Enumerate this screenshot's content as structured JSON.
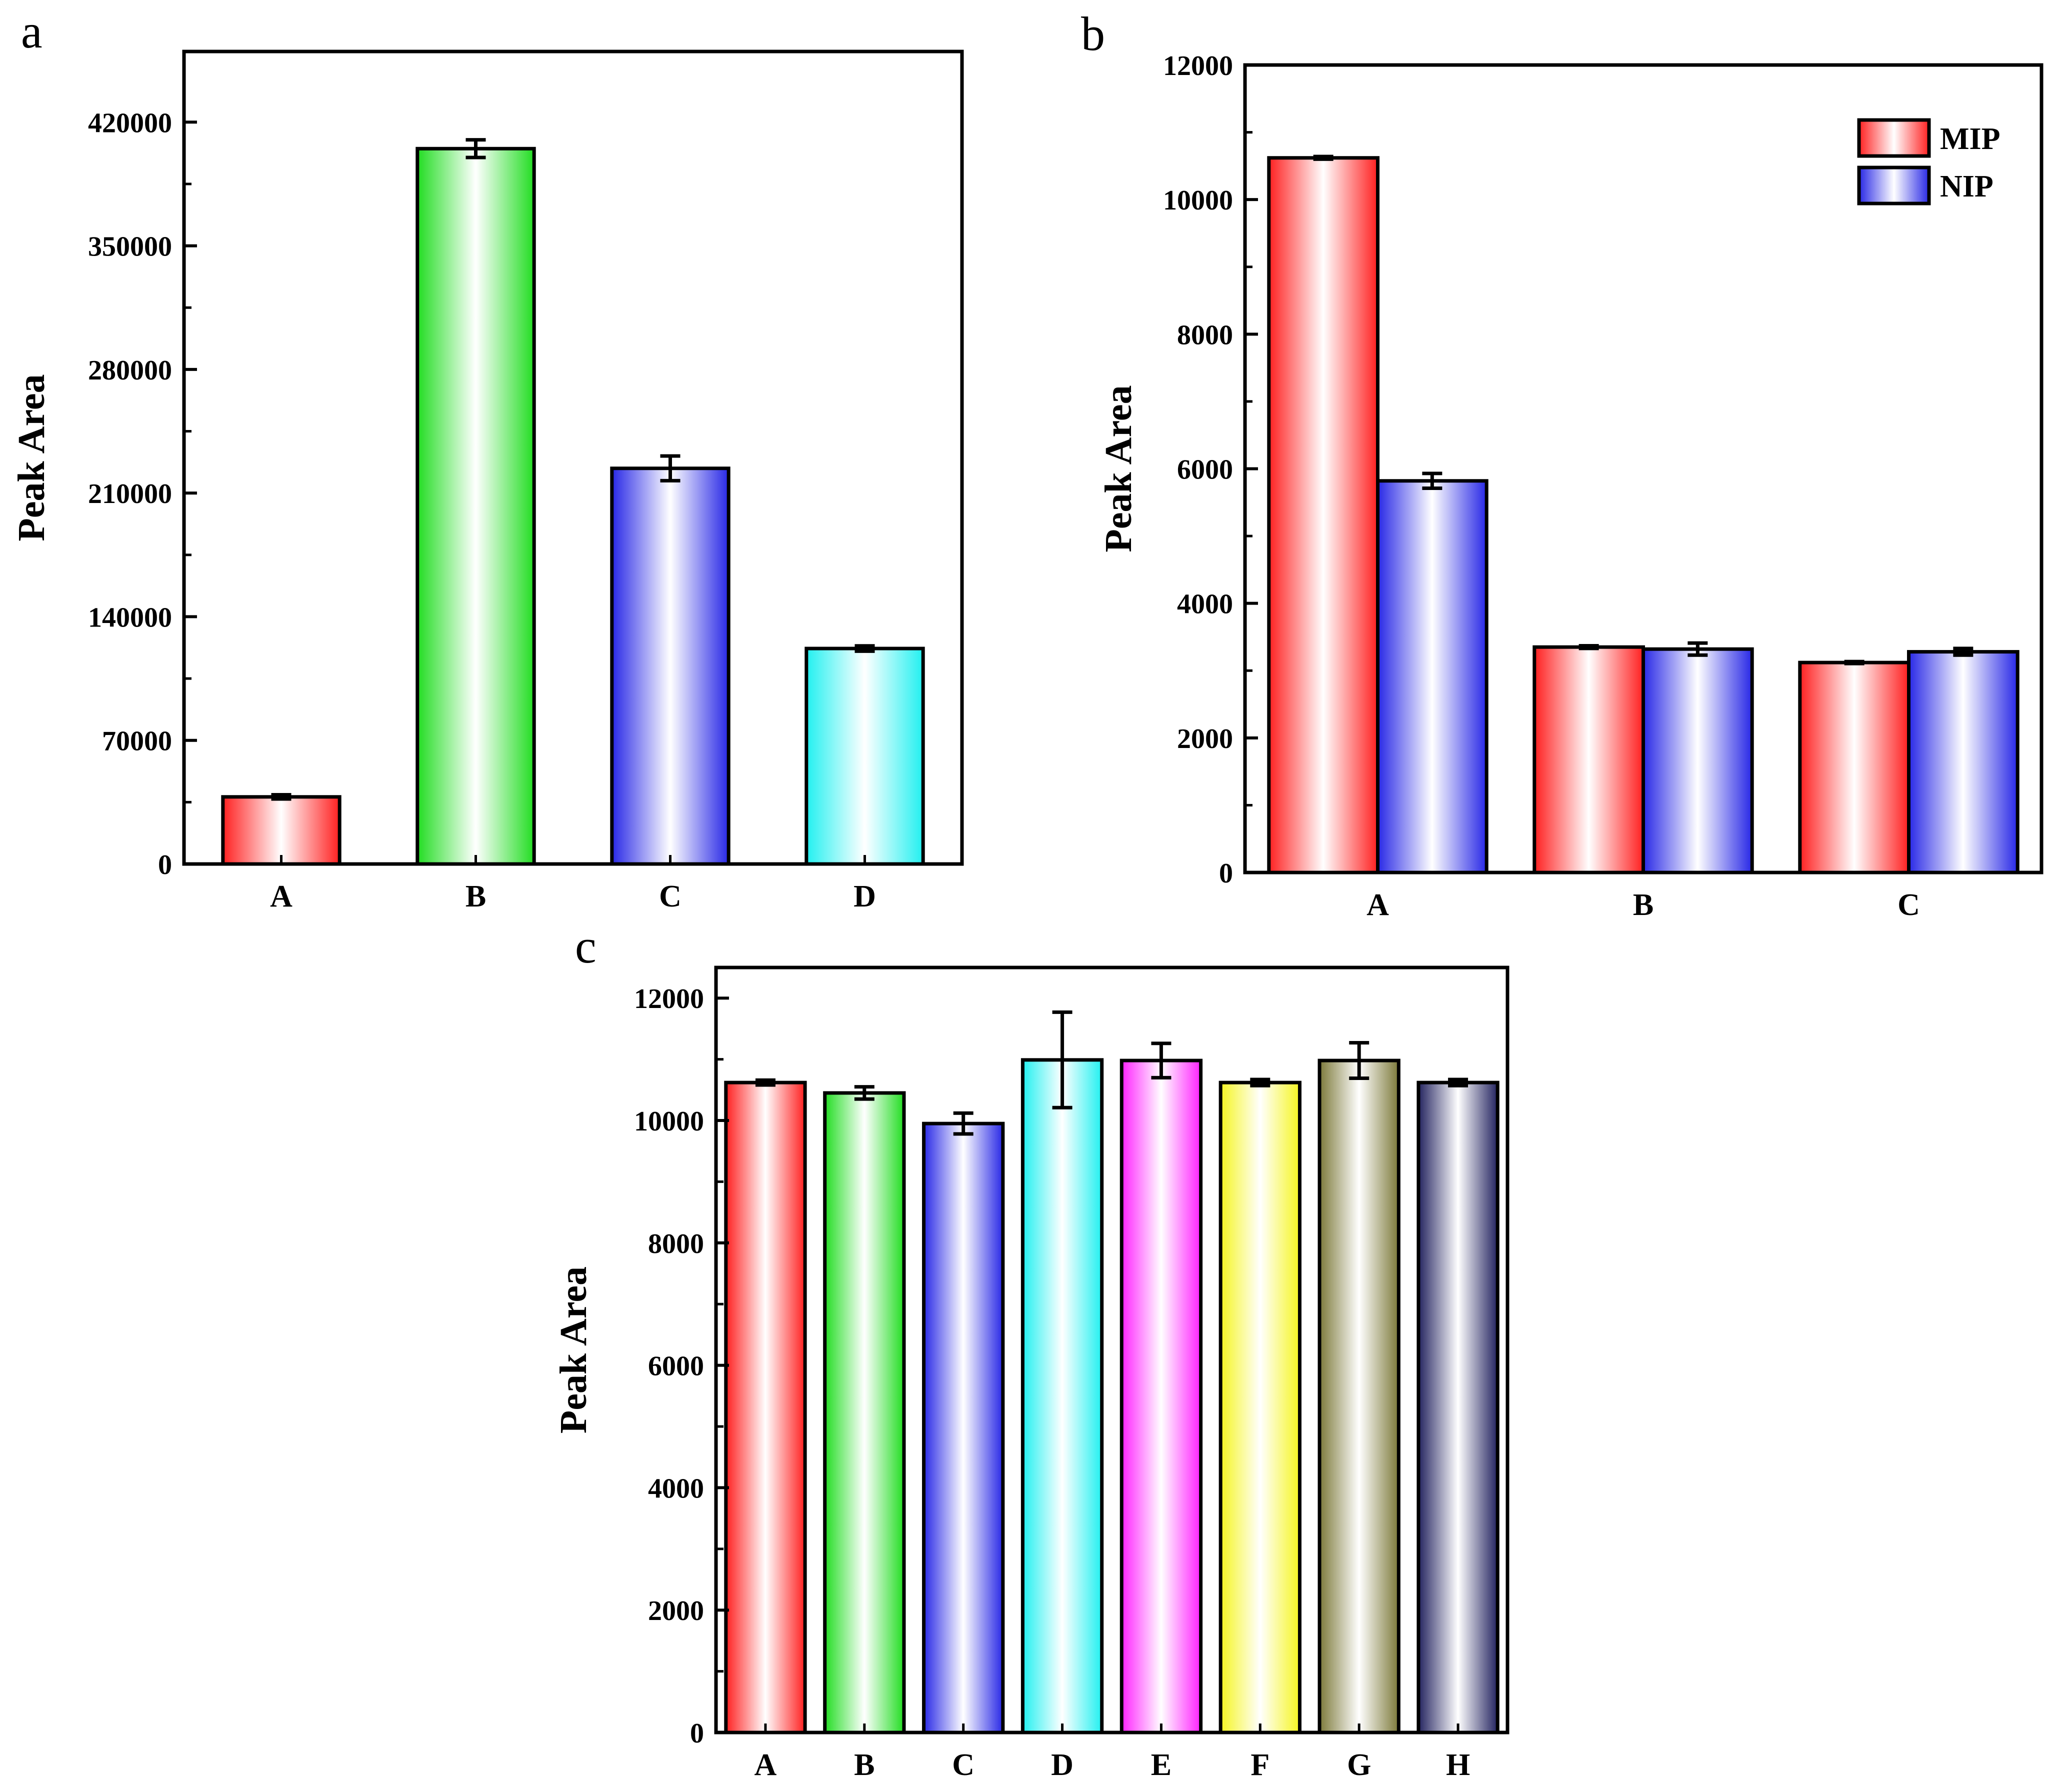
{
  "chart_data": [
    {
      "panel": "a",
      "type": "bar",
      "ylabel": "Peak Area",
      "xlabel": "",
      "ylim": [
        0,
        460000
      ],
      "yticks": [
        0,
        70000,
        140000,
        210000,
        280000,
        350000,
        420000
      ],
      "yticks_labels": [
        "0",
        "70000",
        "140000",
        "210000",
        "280000",
        "350000",
        "420000"
      ],
      "categories": [
        "A",
        "B",
        "C",
        "D"
      ],
      "values": [
        38000,
        405000,
        224000,
        122000
      ],
      "errors": [
        1200,
        5000,
        7000,
        1500
      ],
      "colors": [
        "#ff2020",
        "#22dd22",
        "#2828e6",
        "#22f0f0"
      ]
    },
    {
      "panel": "b",
      "type": "bar",
      "ylabel": "Peak Area",
      "xlabel": "",
      "ylim": [
        0,
        12000
      ],
      "yticks": [
        0,
        2000,
        4000,
        6000,
        8000,
        10000,
        12000
      ],
      "yticks_labels": [
        "0",
        "2000",
        "4000",
        "6000",
        "8000",
        "10000",
        "12000"
      ],
      "categories": [
        "A",
        "B",
        "C"
      ],
      "series": [
        {
          "name": "MIP",
          "color": "#ff2020",
          "values": [
            10620,
            3350,
            3120
          ],
          "errors": [
            20,
            20,
            15
          ]
        },
        {
          "name": "NIP",
          "color": "#2828e6",
          "values": [
            5820,
            3320,
            3280
          ],
          "errors": [
            110,
            90,
            50
          ]
        }
      ],
      "legend_position": "top-right"
    },
    {
      "panel": "c",
      "type": "bar",
      "ylabel": "Peak Area",
      "xlabel": "",
      "ylim": [
        0,
        12500
      ],
      "yticks": [
        0,
        2000,
        4000,
        6000,
        8000,
        10000,
        12000
      ],
      "yticks_labels": [
        "0",
        "2000",
        "4000",
        "6000",
        "8000",
        "10000",
        "12000"
      ],
      "categories": [
        "A",
        "B",
        "C",
        "D",
        "E",
        "F",
        "G",
        "H"
      ],
      "values": [
        10620,
        10450,
        9950,
        10990,
        10980,
        10620,
        10980,
        10620
      ],
      "errors": [
        40,
        100,
        170,
        780,
        280,
        50,
        290,
        50
      ],
      "colors": [
        "#ff2020",
        "#22dd22",
        "#2828e6",
        "#22f0f0",
        "#ff22ff",
        "#f5f520",
        "#7d7a3a",
        "#242460"
      ]
    }
  ]
}
